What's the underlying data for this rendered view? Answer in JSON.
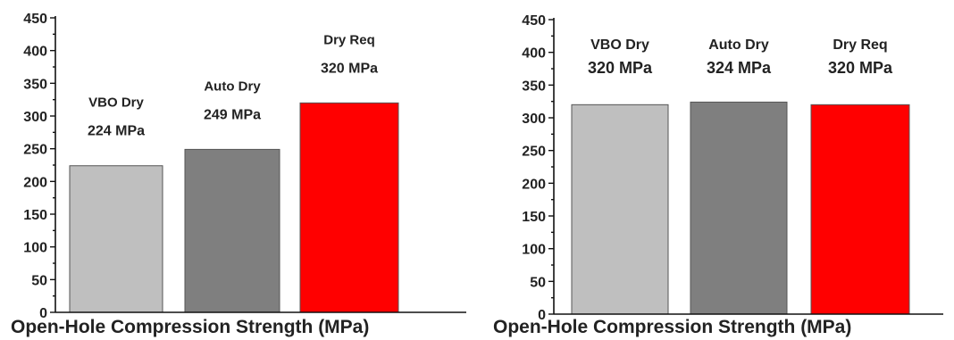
{
  "chart_data": [
    {
      "type": "bar",
      "xlabel": "Open-Hole Compression Strength (MPa)",
      "ylabel": "",
      "ylim": [
        0,
        450
      ],
      "yticks": [
        0,
        50,
        100,
        150,
        200,
        250,
        300,
        350,
        400,
        450
      ],
      "categories": [
        "VBO Dry",
        "Auto Dry",
        "Dry Req"
      ],
      "values": [
        224,
        249,
        320
      ],
      "value_labels": [
        "224 MPa",
        "249 MPa",
        "320 MPa"
      ],
      "colors": [
        "#bfbfbf",
        "#7f7f7f",
        "#ff0000"
      ],
      "grid": false,
      "legend": "none"
    },
    {
      "type": "bar",
      "xlabel": "Open-Hole Compression Strength (MPa)",
      "ylabel": "",
      "ylim": [
        0,
        450
      ],
      "yticks": [
        0,
        50,
        100,
        150,
        200,
        250,
        300,
        350,
        400,
        450
      ],
      "categories": [
        "VBO Dry",
        "Auto Dry",
        "Dry Req"
      ],
      "values": [
        320,
        324,
        320
      ],
      "value_labels": [
        "320 MPa",
        "324 MPa",
        "320 MPa"
      ],
      "colors": [
        "#bfbfbf",
        "#7f7f7f",
        "#ff0000"
      ],
      "grid": false,
      "legend": "none"
    }
  ]
}
